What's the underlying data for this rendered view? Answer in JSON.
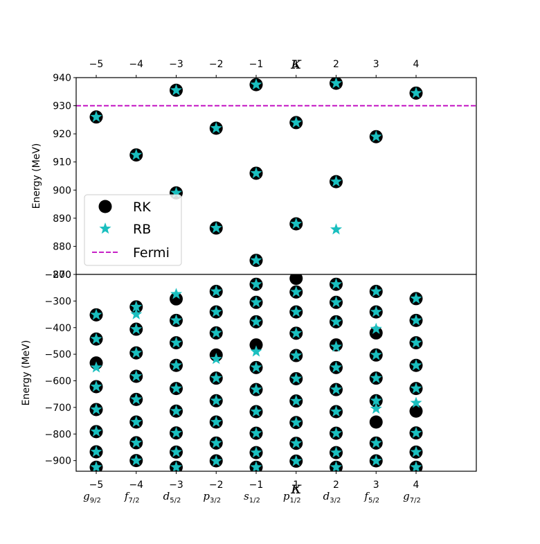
{
  "chart_data": {
    "type": "scatter",
    "kappa_symbol": "κ",
    "kappa_ticks": [
      "−5",
      "−4",
      "−3",
      "−2",
      "−1",
      "1",
      "2",
      "3",
      "4"
    ],
    "orbitals": [
      {
        "l": "g",
        "j": "9/2"
      },
      {
        "l": "f",
        "j": "7/2"
      },
      {
        "l": "d",
        "j": "5/2"
      },
      {
        "l": "p",
        "j": "3/2"
      },
      {
        "l": "s",
        "j": "1/2"
      },
      {
        "l": "p",
        "j": "1/2"
      },
      {
        "l": "d",
        "j": "3/2"
      },
      {
        "l": "f",
        "j": "5/2"
      },
      {
        "l": "g",
        "j": "7/2"
      }
    ],
    "top_panel": {
      "ylabel": "Energy (MeV)",
      "ylim": [
        870,
        940
      ],
      "yticks": [
        "870",
        "880",
        "890",
        "900",
        "910",
        "920",
        "930",
        "940"
      ],
      "fermi": 930,
      "series": [
        {
          "name": "RK",
          "points": [
            [
              0,
              926
            ],
            [
              1,
              912.5
            ],
            [
              2,
              935.5
            ],
            [
              2,
              899
            ],
            [
              3,
              922
            ],
            [
              3,
              886.5
            ],
            [
              4,
              937.5
            ],
            [
              4,
              906
            ],
            [
              4,
              875
            ],
            [
              5,
              924
            ],
            [
              5,
              888
            ],
            [
              6,
              938
            ],
            [
              6,
              903
            ],
            [
              7,
              919
            ],
            [
              8,
              934.5
            ]
          ]
        },
        {
          "name": "RB",
          "points": [
            [
              0,
              926
            ],
            [
              1,
              912.5
            ],
            [
              2,
              935.5
            ],
            [
              2,
              899
            ],
            [
              3,
              922
            ],
            [
              3,
              886.5
            ],
            [
              4,
              937.5
            ],
            [
              4,
              906
            ],
            [
              4,
              875
            ],
            [
              5,
              924
            ],
            [
              5,
              888
            ],
            [
              6,
              938
            ],
            [
              6,
              903
            ],
            [
              6,
              886
            ],
            [
              7,
              919
            ],
            [
              8,
              934.5
            ]
          ]
        }
      ]
    },
    "bottom_panel": {
      "ylabel": "Energy (MeV)",
      "ylim": [
        -940,
        -200
      ],
      "yticks": [
        "−900",
        "−800",
        "−700",
        "−600",
        "−500",
        "−400",
        "−300",
        "−200"
      ],
      "series": [
        {
          "name": "RK",
          "points": [
            [
              0,
              -352
            ],
            [
              0,
              -443
            ],
            [
              0,
              -533
            ],
            [
              0,
              -622
            ],
            [
              0,
              -708
            ],
            [
              0,
              -791
            ],
            [
              0,
              -867
            ],
            [
              0,
              -925
            ],
            [
              1,
              -322
            ],
            [
              1,
              -406
            ],
            [
              1,
              -495
            ],
            [
              1,
              -583
            ],
            [
              1,
              -670
            ],
            [
              1,
              -755
            ],
            [
              1,
              -833
            ],
            [
              1,
              -900
            ],
            [
              2,
              -292
            ],
            [
              2,
              -373
            ],
            [
              2,
              -457
            ],
            [
              2,
              -542
            ],
            [
              2,
              -629
            ],
            [
              2,
              -714
            ],
            [
              2,
              -796
            ],
            [
              2,
              -868
            ],
            [
              2,
              -925
            ],
            [
              3,
              -264
            ],
            [
              3,
              -341
            ],
            [
              3,
              -420
            ],
            [
              3,
              -503
            ],
            [
              3,
              -590
            ],
            [
              3,
              -675
            ],
            [
              3,
              -755
            ],
            [
              3,
              -834
            ],
            [
              3,
              -901
            ],
            [
              4,
              -237
            ],
            [
              4,
              -305
            ],
            [
              4,
              -378
            ],
            [
              4,
              -465
            ],
            [
              4,
              -550
            ],
            [
              4,
              -633
            ],
            [
              4,
              -716
            ],
            [
              4,
              -797
            ],
            [
              4,
              -870
            ],
            [
              4,
              -925
            ],
            [
              5,
              -215
            ],
            [
              5,
              -266
            ],
            [
              5,
              -341
            ],
            [
              5,
              -421
            ],
            [
              5,
              -505
            ],
            [
              5,
              -592
            ],
            [
              5,
              -676
            ],
            [
              5,
              -757
            ],
            [
              5,
              -835
            ],
            [
              5,
              -902
            ],
            [
              6,
              -237
            ],
            [
              6,
              -305
            ],
            [
              6,
              -378
            ],
            [
              6,
              -465
            ],
            [
              6,
              -550
            ],
            [
              6,
              -633
            ],
            [
              6,
              -716
            ],
            [
              6,
              -797
            ],
            [
              6,
              -870
            ],
            [
              6,
              -925
            ],
            [
              7,
              -264
            ],
            [
              7,
              -341
            ],
            [
              7,
              -420
            ],
            [
              7,
              -503
            ],
            [
              7,
              -590
            ],
            [
              7,
              -675
            ],
            [
              7,
              -755
            ],
            [
              7,
              -834
            ],
            [
              7,
              -901
            ],
            [
              8,
              -291
            ],
            [
              8,
              -373
            ],
            [
              8,
              -457
            ],
            [
              8,
              -542
            ],
            [
              8,
              -629
            ],
            [
              8,
              -714
            ],
            [
              8,
              -796
            ],
            [
              8,
              -868
            ],
            [
              8,
              -925
            ]
          ]
        },
        {
          "name": "RB",
          "points": [
            [
              0,
              -352
            ],
            [
              0,
              -443
            ],
            [
              0,
              -550
            ],
            [
              0,
              -622
            ],
            [
              0,
              -708
            ],
            [
              0,
              -791
            ],
            [
              0,
              -867
            ],
            [
              0,
              -925
            ],
            [
              1,
              -322
            ],
            [
              1,
              -350
            ],
            [
              1,
              -406
            ],
            [
              1,
              -495
            ],
            [
              1,
              -583
            ],
            [
              1,
              -670
            ],
            [
              1,
              -755
            ],
            [
              1,
              -833
            ],
            [
              1,
              -900
            ],
            [
              2,
              -274
            ],
            [
              2,
              -373
            ],
            [
              2,
              -457
            ],
            [
              2,
              -542
            ],
            [
              2,
              -629
            ],
            [
              2,
              -714
            ],
            [
              2,
              -796
            ],
            [
              2,
              -868
            ],
            [
              2,
              -925
            ],
            [
              3,
              -264
            ],
            [
              3,
              -341
            ],
            [
              3,
              -420
            ],
            [
              3,
              -518
            ],
            [
              3,
              -590
            ],
            [
              3,
              -675
            ],
            [
              3,
              -755
            ],
            [
              3,
              -834
            ],
            [
              3,
              -902
            ],
            [
              4,
              -237
            ],
            [
              4,
              -305
            ],
            [
              4,
              -378
            ],
            [
              4,
              -490
            ],
            [
              4,
              -550
            ],
            [
              4,
              -633
            ],
            [
              4,
              -716
            ],
            [
              4,
              -797
            ],
            [
              4,
              -870
            ],
            [
              4,
              -925
            ],
            [
              5,
              -266
            ],
            [
              5,
              -341
            ],
            [
              5,
              -421
            ],
            [
              5,
              -505
            ],
            [
              5,
              -592
            ],
            [
              5,
              -676
            ],
            [
              5,
              -757
            ],
            [
              5,
              -835
            ],
            [
              5,
              -902
            ],
            [
              6,
              -237
            ],
            [
              6,
              -305
            ],
            [
              6,
              -378
            ],
            [
              6,
              -472
            ],
            [
              6,
              -550
            ],
            [
              6,
              -633
            ],
            [
              6,
              -716
            ],
            [
              6,
              -797
            ],
            [
              6,
              -870
            ],
            [
              6,
              -925
            ],
            [
              7,
              -264
            ],
            [
              7,
              -341
            ],
            [
              7,
              -405
            ],
            [
              7,
              -503
            ],
            [
              7,
              -590
            ],
            [
              7,
              -675
            ],
            [
              7,
              -705
            ],
            [
              7,
              -834
            ],
            [
              7,
              -901
            ],
            [
              8,
              -291
            ],
            [
              8,
              -373
            ],
            [
              8,
              -457
            ],
            [
              8,
              -542
            ],
            [
              8,
              -629
            ],
            [
              8,
              -683
            ],
            [
              8,
              -796
            ],
            [
              8,
              -868
            ],
            [
              8,
              -925
            ]
          ]
        }
      ]
    },
    "legend": {
      "placement": "lower-left of top panel",
      "entries": [
        {
          "label": "RK",
          "marker": "circle",
          "color": "#000000"
        },
        {
          "label": "RB",
          "marker": "star",
          "color": "#17becf"
        },
        {
          "label": "Fermi",
          "marker": "dashed-line",
          "color": "#bf00bf"
        }
      ]
    },
    "colors": {
      "rk": "#000000",
      "rb": "#1abfbf",
      "fermi": "#bf00bf"
    }
  }
}
